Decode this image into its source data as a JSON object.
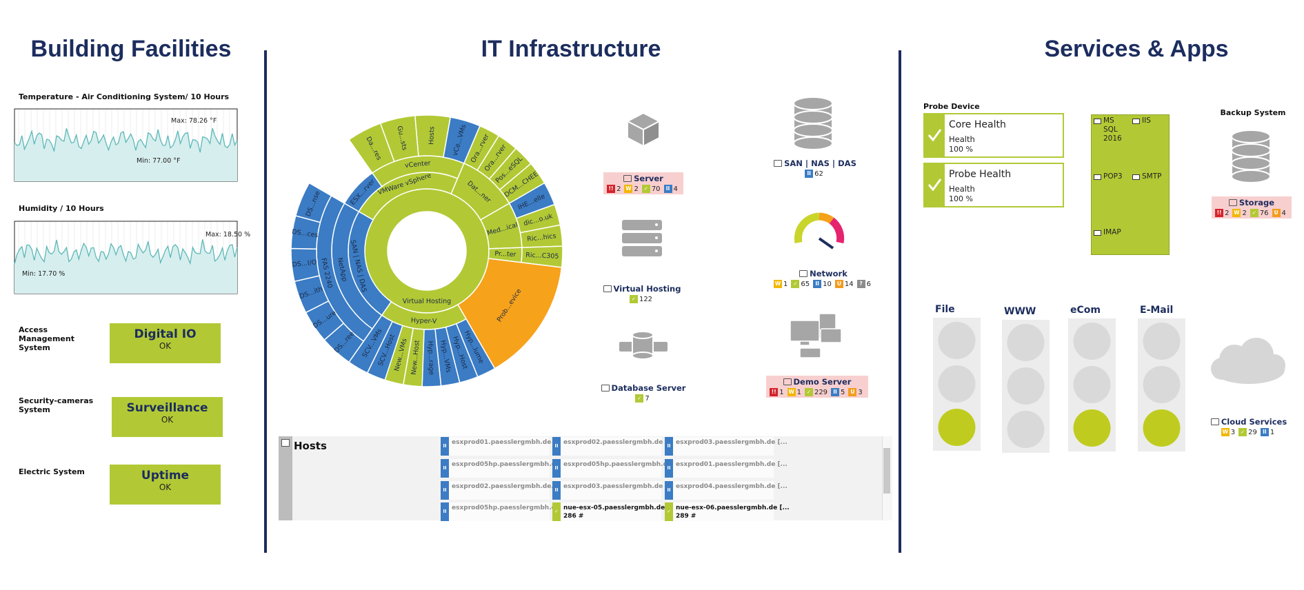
{
  "building": {
    "title": "Building Facilities",
    "charts": [
      {
        "label": "Temperature - Air Conditioning System/ 10 Hours",
        "max": "Max: 78.26 °F",
        "min": "Min: 77.00 °F"
      },
      {
        "label": "Humidity / 10 Hours",
        "max": "Max: 18.50 %",
        "min": "Min: 17.70 %"
      }
    ],
    "systems": [
      {
        "label": "Access Management System",
        "name": "Digital IO",
        "status": "OK"
      },
      {
        "label": "Security-cameras System",
        "name": "Surveillance",
        "status": "OK"
      },
      {
        "label": "Electric System",
        "name": "Uptime",
        "status": "OK"
      }
    ]
  },
  "it": {
    "title": "IT Infrastructure",
    "sunburst": [
      {
        "label": "Virtual Hosting",
        "color": "#b2c935"
      },
      {
        "label": "VMWare vSphere",
        "color": "#b2c935"
      },
      {
        "label": "vCenter",
        "color": "#b2c935"
      },
      {
        "label": "ESX...rver",
        "color": "#3b7cc4"
      },
      {
        "label": "Da...res",
        "color": "#b2c935"
      },
      {
        "label": "Gu...sts",
        "color": "#b2c935"
      },
      {
        "label": "Hosts",
        "color": "#b2c935"
      },
      {
        "label": "vCe...VMs",
        "color": "#3b7cc4"
      },
      {
        "label": "Dat...ner",
        "color": "#b2c935"
      },
      {
        "label": "Ora...rver",
        "color": "#b2c935"
      },
      {
        "label": "Ora...rver",
        "color": "#b2c935"
      },
      {
        "label": "Pos...eSQL",
        "color": "#b2c935"
      },
      {
        "label": "DCM...CHEE",
        "color": "#b2c935"
      },
      {
        "label": "Med...ical",
        "color": "#b2c935"
      },
      {
        "label": "IHE...elle",
        "color": "#3b7cc4"
      },
      {
        "label": "dic...o.uk",
        "color": "#b2c935"
      },
      {
        "label": "Ric...hics",
        "color": "#b2c935"
      },
      {
        "label": "Pr...ter",
        "color": "#b2c935"
      },
      {
        "label": "Ric...C305",
        "color": "#b2c935"
      },
      {
        "label": "Prob...evice",
        "color": "#f7a21b"
      },
      {
        "label": "Hyper-V",
        "color": "#b2c935"
      },
      {
        "label": "Hyp...lume",
        "color": "#3b7cc4"
      },
      {
        "label": "Hyp...Host",
        "color": "#3b7cc4"
      },
      {
        "label": "Hyp...VMs",
        "color": "#3b7cc4"
      },
      {
        "label": "Hyp...rage",
        "color": "#3b7cc4"
      },
      {
        "label": "New...Host",
        "color": "#b2c935"
      },
      {
        "label": "New...VMs",
        "color": "#b2c935"
      },
      {
        "label": "SCV...Host",
        "color": "#3b7cc4"
      },
      {
        "label": "SCV...VMs",
        "color": "#3b7cc4"
      },
      {
        "label": "SAN | NAS | DAS",
        "color": "#3b7cc4"
      },
      {
        "label": "NetApp",
        "color": "#3b7cc4"
      },
      {
        "label": "FAS 2240",
        "color": "#3b7cc4"
      },
      {
        "label": "DS...ree",
        "color": "#3b7cc4"
      },
      {
        "label": "DS...ure",
        "color": "#3b7cc4"
      },
      {
        "label": "DS...ith",
        "color": "#3b7cc4"
      },
      {
        "label": "DS...I/O",
        "color": "#3b7cc4"
      },
      {
        "label": "DS...ces",
        "color": "#3b7cc4"
      },
      {
        "label": "DS...nse",
        "color": "#3b7cc4"
      }
    ],
    "devices": [
      {
        "name": "Server",
        "highlight": "#f8cfcf",
        "badges": [
          {
            "icon": "!!",
            "color": "#d3242c",
            "count": 2
          },
          {
            "icon": "W",
            "color": "#f2b705",
            "count": 2
          },
          {
            "icon": "✓",
            "color": "#b2c935",
            "count": 70
          },
          {
            "icon": "II",
            "color": "#3b7cc4",
            "count": 4
          }
        ]
      },
      {
        "name": "SAN | NAS | DAS",
        "badges": [
          {
            "icon": "II",
            "color": "#3b7cc4",
            "count": 62
          }
        ]
      },
      {
        "name": "Virtual Hosting",
        "badges": [
          {
            "icon": "✓",
            "color": "#b2c935",
            "count": 122
          }
        ]
      },
      {
        "name": "Network",
        "badges": [
          {
            "icon": "W",
            "color": "#f2b705",
            "count": 1
          },
          {
            "icon": "✓",
            "color": "#b2c935",
            "count": 65
          },
          {
            "icon": "II",
            "color": "#3b7cc4",
            "count": 10
          },
          {
            "icon": "U",
            "color": "#f39c1f",
            "count": 14
          },
          {
            "icon": "?",
            "color": "#8c8c8c",
            "count": 6
          }
        ]
      },
      {
        "name": "Database Server",
        "badges": [
          {
            "icon": "✓",
            "color": "#b2c935",
            "count": 7
          }
        ]
      },
      {
        "name": "Demo Server",
        "highlight": "#f8cfcf",
        "badges": [
          {
            "icon": "!!",
            "color": "#d3242c",
            "count": 1
          },
          {
            "icon": "W",
            "color": "#f2b705",
            "count": 1
          },
          {
            "icon": "✓",
            "color": "#b2c935",
            "count": 229
          },
          {
            "icon": "II",
            "color": "#3b7cc4",
            "count": 5
          },
          {
            "icon": "U",
            "color": "#f39c1f",
            "count": 3
          }
        ]
      }
    ],
    "hosts": {
      "title": "Hosts",
      "cells": [
        {
          "name": "esxprod01.paesslergmbh.de [...",
          "icon": "II",
          "color": "#3b7cc4"
        },
        {
          "name": "esxprod02.paesslergmbh.de [...",
          "icon": "II",
          "color": "#3b7cc4"
        },
        {
          "name": "esxprod03.paesslergmbh.de [...",
          "icon": "II",
          "color": "#3b7cc4"
        },
        {
          "name": "esxprod05hp.paesslergmbh.d...",
          "icon": "II",
          "color": "#3b7cc4"
        },
        {
          "name": "esxprod05hp.paesslergmbh.de...",
          "icon": "II",
          "color": "#3b7cc4"
        },
        {
          "name": "esxprod01.paesslergmbh.de [...",
          "icon": "II",
          "color": "#3b7cc4"
        },
        {
          "name": "esxprod02.paesslergmbh.de...",
          "icon": "II",
          "color": "#3b7cc4"
        },
        {
          "name": "esxprod03.paesslergmbh.de [...",
          "icon": "II",
          "color": "#3b7cc4"
        },
        {
          "name": "esxprod04.paesslergmbh.de [...",
          "icon": "II",
          "color": "#3b7cc4"
        },
        {
          "name": "esxprod05hp.paesslergmbh.de...",
          "icon": "II",
          "color": "#3b7cc4"
        },
        {
          "name": "nue-esx-05.paesslergmbh.de [...",
          "icon": "✓",
          "color": "#b2c935",
          "count": "286 #"
        },
        {
          "name": "nue-esx-06.paesslergmbh.de [...",
          "icon": "✓",
          "color": "#b2c935",
          "count": "289 #"
        }
      ]
    }
  },
  "services": {
    "title": "Services & Apps",
    "probe_label": "Probe Device",
    "health": [
      {
        "name": "Core Health",
        "channel": "Health",
        "value": "100 %"
      },
      {
        "name": "Probe Health",
        "channel": "Health",
        "value": "100 %"
      }
    ],
    "apps": [
      "MS SQL 2016",
      "IIS",
      "POP3",
      "SMTP",
      "IMAP"
    ],
    "backup_label": "Backup System",
    "devices": [
      {
        "name": "Storage",
        "highlight": "#f8cfcf",
        "badges": [
          {
            "icon": "!!",
            "color": "#d3242c",
            "count": 2
          },
          {
            "icon": "W",
            "color": "#f2b705",
            "count": 2
          },
          {
            "icon": "✓",
            "color": "#b2c935",
            "count": 76
          },
          {
            "icon": "U",
            "color": "#f39c1f",
            "count": 4
          }
        ]
      },
      {
        "name": "Cloud Services",
        "badges": [
          {
            "icon": "W",
            "color": "#f2b705",
            "count": 3
          },
          {
            "icon": "✓",
            "color": "#b2c935",
            "count": 29
          },
          {
            "icon": "II",
            "color": "#3b7cc4",
            "count": 1
          }
        ]
      }
    ],
    "lights": [
      {
        "name": "File",
        "lights": [
          "#d9d9d9",
          "#d9d9d9",
          "#bfcc1f"
        ]
      },
      {
        "name": "WWW",
        "lights": [
          "#d9d9d9",
          "#d9d9d9",
          "#d9d9d9"
        ]
      },
      {
        "name": "eCom",
        "lights": [
          "#d9d9d9",
          "#d9d9d9",
          "#bfcc1f"
        ]
      },
      {
        "name": "E-Mail",
        "lights": [
          "#d9d9d9",
          "#d9d9d9",
          "#bfcc1f"
        ]
      }
    ]
  }
}
